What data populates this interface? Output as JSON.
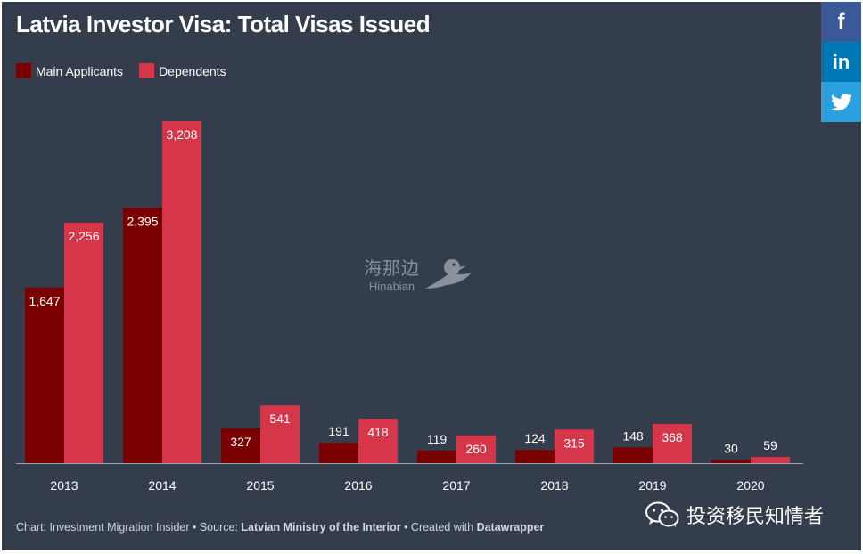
{
  "header": {
    "title": "Latvia Investor Visa: Total Visas Issued"
  },
  "legend": [
    {
      "label": "Main Applicants",
      "color": "#7a0000"
    },
    {
      "label": "Dependents",
      "color": "#d6364a"
    }
  ],
  "share": {
    "facebook": "f",
    "linkedin": "in",
    "twitter_icon": "twitter-bird-icon"
  },
  "chart_data": {
    "type": "bar",
    "title": "Latvia Investor Visa: Total Visas Issued",
    "xlabel": "",
    "ylabel": "",
    "grid": false,
    "legend_position": "top-left",
    "categories": [
      "2013",
      "2014",
      "2015",
      "2016",
      "2017",
      "2018",
      "2019",
      "2020"
    ],
    "series": [
      {
        "name": "Main Applicants",
        "color": "#7a0000",
        "values": [
          1647,
          2395,
          327,
          191,
          119,
          124,
          148,
          30
        ],
        "labels": [
          "1,647",
          "2,395",
          "327",
          "191",
          "119",
          "124",
          "148",
          "30"
        ]
      },
      {
        "name": "Dependents",
        "color": "#d6364a",
        "values": [
          2256,
          3208,
          541,
          418,
          260,
          315,
          368,
          59
        ],
        "labels": [
          "2,256",
          "3,208",
          "541",
          "418",
          "260",
          "315",
          "368",
          "59"
        ]
      }
    ],
    "ylim": [
      0,
      3300
    ]
  },
  "watermark": {
    "chinese": "海那边",
    "latin": "Hinabian"
  },
  "footer": {
    "prefix": "Chart: Investment Migration Insider • Source: ",
    "source": "Latvian Ministry of the Interior",
    "middle": " • Created with ",
    "tool": "Datawrapper"
  },
  "wechat": {
    "account": "投资移民知情者",
    "icon": "wechat-icon"
  }
}
